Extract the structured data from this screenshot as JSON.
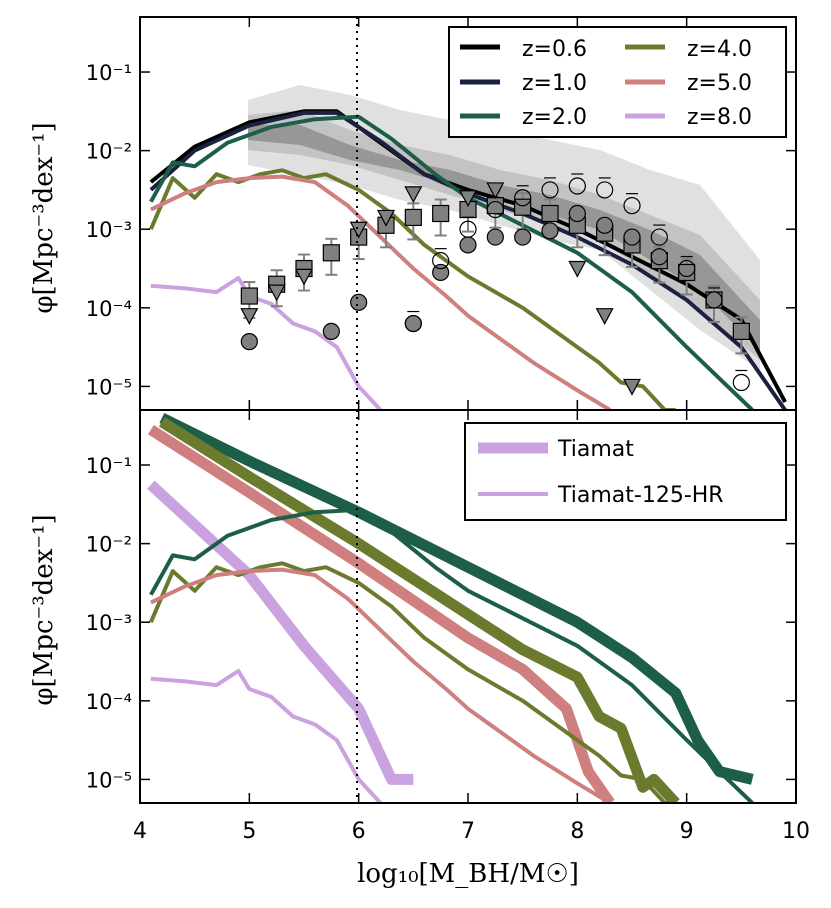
{
  "figure": {
    "top_panel": {
      "ylabel": "φ[Mpc⁻³dex⁻¹]",
      "legend": [
        {
          "label": "z=0.6",
          "color": "#000000"
        },
        {
          "label": "z=1.0",
          "color": "#1b2240"
        },
        {
          "label": "z=2.0",
          "color": "#1d5e48"
        },
        {
          "label": "z=4.0",
          "color": "#6b7b2e"
        },
        {
          "label": "z=5.0",
          "color": "#cf7f7f"
        },
        {
          "label": "z=8.0",
          "color": "#c9a2df"
        }
      ]
    },
    "bottom_panel": {
      "ylabel": "φ[Mpc⁻³dex⁻¹]",
      "legend": [
        {
          "label": "Tiamat",
          "style": "thick"
        },
        {
          "label": "Tiamat-125-HR",
          "style": "thin"
        }
      ]
    },
    "xlabel": "log₁₀[M_BH/M☉]",
    "xticks": [
      "4",
      "5",
      "6",
      "7",
      "8",
      "9",
      "10"
    ],
    "yticks": [
      "10⁻¹",
      "10⁻²",
      "10⁻³",
      "10⁻⁴",
      "10⁻⁵"
    ]
  },
  "chart_data": [
    {
      "type": "line",
      "xlim": [
        4,
        10
      ],
      "ylim_log10": [
        -5.3,
        -0.3
      ],
      "y_scale": "log",
      "reference_line_x": 6,
      "legend_position": "top-right",
      "series": [
        {
          "name": "z=0.6",
          "color": "#000000",
          "x": [
            4.1,
            4.5,
            5.0,
            5.5,
            5.8,
            6.2,
            6.6,
            7.0,
            7.5,
            8.0,
            8.5,
            9.0,
            9.5,
            9.9
          ],
          "log_y": [
            -2.4,
            -1.95,
            -1.64,
            -1.5,
            -1.5,
            -1.9,
            -2.3,
            -2.5,
            -2.7,
            -3.0,
            -3.35,
            -3.7,
            -4.15,
            -5.2
          ]
        },
        {
          "name": "z=1.0",
          "color": "#1b2240",
          "x": [
            4.1,
            4.5,
            5.0,
            5.5,
            5.8,
            6.2,
            6.6,
            7.0,
            7.5,
            8.0,
            8.5,
            9.0,
            9.5,
            9.9
          ],
          "log_y": [
            -2.5,
            -2.0,
            -1.68,
            -1.52,
            -1.52,
            -1.88,
            -2.3,
            -2.55,
            -2.8,
            -3.1,
            -3.45,
            -3.9,
            -4.5,
            -5.3
          ]
        },
        {
          "name": "z=2.0",
          "color": "#1d5e48",
          "x": [
            4.1,
            4.3,
            4.5,
            4.8,
            5.2,
            5.6,
            6.0,
            6.3,
            6.7,
            7.0,
            7.5,
            8.0,
            8.5,
            9.0,
            9.3,
            9.6
          ],
          "log_y": [
            -2.65,
            -2.15,
            -2.2,
            -1.9,
            -1.7,
            -1.6,
            -1.57,
            -1.85,
            -2.3,
            -2.6,
            -2.95,
            -3.3,
            -3.8,
            -4.5,
            -4.9,
            -5.3
          ]
        },
        {
          "name": "z=4.0",
          "color": "#6b7b2e",
          "x": [
            4.1,
            4.3,
            4.5,
            4.7,
            4.9,
            5.1,
            5.3,
            5.5,
            5.7,
            6.0,
            6.3,
            6.6,
            7.0,
            7.5,
            8.0,
            8.2,
            8.4,
            8.6,
            8.8,
            8.9
          ],
          "log_y": [
            -3.0,
            -2.35,
            -2.6,
            -2.3,
            -2.4,
            -2.3,
            -2.25,
            -2.35,
            -2.3,
            -2.5,
            -2.8,
            -3.2,
            -3.6,
            -4.0,
            -4.5,
            -4.7,
            -4.95,
            -5.0,
            -5.3,
            -5.3
          ]
        },
        {
          "name": "z=5.0",
          "color": "#cf7f7f",
          "x": [
            4.1,
            4.4,
            4.7,
            5.0,
            5.3,
            5.6,
            5.9,
            6.2,
            6.5,
            6.8,
            7.0,
            7.3,
            7.6,
            8.0,
            8.3
          ],
          "log_y": [
            -2.75,
            -2.55,
            -2.4,
            -2.35,
            -2.33,
            -2.4,
            -2.7,
            -3.1,
            -3.5,
            -3.85,
            -4.1,
            -4.4,
            -4.7,
            -5.05,
            -5.3
          ]
        },
        {
          "name": "z=8.0",
          "color": "#c9a2df",
          "x": [
            4.1,
            4.4,
            4.7,
            4.9,
            5.0,
            5.2,
            5.4,
            5.6,
            5.8,
            6.0,
            6.2
          ],
          "log_y": [
            -3.72,
            -3.75,
            -3.8,
            -3.62,
            -3.85,
            -3.95,
            -4.2,
            -4.3,
            -4.5,
            -5.0,
            -5.3
          ]
        }
      ],
      "observations": {
        "squares": {
          "x": [
            5.0,
            5.25,
            5.5,
            5.75,
            6.0,
            6.25,
            6.5,
            6.75,
            7.0,
            7.25,
            7.5,
            7.75,
            8.0,
            8.25,
            8.5,
            8.75,
            9.0,
            9.25,
            9.5
          ],
          "log_y": [
            -3.85,
            -3.7,
            -3.5,
            -3.3,
            -3.1,
            -2.95,
            -2.85,
            -2.8,
            -2.75,
            -2.7,
            -2.72,
            -2.8,
            -2.95,
            -3.05,
            -3.2,
            -3.4,
            -3.55,
            -3.9,
            -4.3
          ]
        },
        "filled_circles": {
          "x": [
            5.0,
            5.75,
            6.0,
            6.5,
            6.75,
            7.0,
            7.25,
            7.5,
            7.75,
            8.0,
            8.25,
            8.5,
            8.75
          ],
          "log_y": [
            -4.43,
            -4.3,
            -3.93,
            -4.2,
            -3.55,
            -3.2,
            -3.1,
            -3.1,
            -3.02,
            -2.8,
            -2.95,
            -3.1,
            -3.35
          ]
        },
        "open_circles": {
          "x": [
            6.5,
            6.75,
            7.0,
            7.25,
            7.5,
            7.75,
            8.0,
            8.25,
            8.5,
            8.75,
            9.0,
            9.25,
            9.5
          ],
          "log_y": [
            -4.2,
            -3.4,
            -3.0,
            -2.75,
            -2.6,
            -2.5,
            -2.45,
            -2.5,
            -2.7,
            -3.1,
            -3.5,
            -3.9,
            -4.95
          ]
        },
        "triangles": {
          "x": [
            5.0,
            5.25,
            5.5,
            6.0,
            6.25,
            6.5,
            7.0,
            7.25,
            8.0,
            8.25,
            8.5
          ],
          "log_y": [
            -4.1,
            -3.8,
            -3.6,
            -3.0,
            -2.85,
            -2.55,
            -2.6,
            -2.5,
            -3.5,
            -4.1,
            -5.0
          ]
        }
      }
    },
    {
      "type": "line",
      "xlim": [
        4,
        10
      ],
      "ylim_log10": [
        -5.3,
        -0.3
      ],
      "y_scale": "log",
      "reference_line_x": 6,
      "legend_position": "top-right",
      "series": [
        {
          "name": "Tiamat z=2.0",
          "color": "#1d5e48",
          "style": "thick",
          "x": [
            4.2,
            5.0,
            6.0,
            7.0,
            7.5,
            8.0,
            8.5,
            8.9,
            9.1,
            9.3,
            9.6
          ],
          "log_y": [
            -0.4,
            -0.95,
            -1.6,
            -2.3,
            -2.65,
            -3.0,
            -3.45,
            -3.9,
            -4.5,
            -4.9,
            -5.0
          ]
        },
        {
          "name": "Tiamat z=4.0",
          "color": "#6b7b2e",
          "style": "thick",
          "x": [
            4.2,
            5.0,
            6.0,
            7.0,
            7.5,
            8.0,
            8.2,
            8.4,
            8.6,
            8.7,
            8.9
          ],
          "log_y": [
            -0.45,
            -1.15,
            -2.0,
            -2.9,
            -3.35,
            -3.7,
            -4.2,
            -4.35,
            -5.1,
            -5.0,
            -5.3
          ]
        },
        {
          "name": "Tiamat z=5.0",
          "color": "#cf7f7f",
          "style": "thick",
          "x": [
            4.1,
            5.0,
            6.0,
            7.0,
            7.5,
            7.9,
            8.1,
            8.3
          ],
          "log_y": [
            -0.55,
            -1.35,
            -2.25,
            -3.2,
            -3.6,
            -4.1,
            -4.9,
            -5.3
          ]
        },
        {
          "name": "Tiamat z=8.0",
          "color": "#c9a2df",
          "style": "thick",
          "x": [
            4.1,
            5.0,
            5.5,
            6.0,
            6.3,
            6.5
          ],
          "log_y": [
            -1.25,
            -2.4,
            -3.3,
            -4.1,
            -5.0,
            -5.0
          ]
        },
        {
          "name": "Tiamat-125-HR z=2.0",
          "color": "#1d5e48",
          "style": "thin",
          "x": [
            4.1,
            4.3,
            4.5,
            4.8,
            5.2,
            5.6,
            6.0,
            6.3,
            6.7,
            7.0,
            7.5,
            8.0,
            8.5,
            9.0,
            9.3,
            9.6
          ],
          "log_y": [
            -2.65,
            -2.15,
            -2.2,
            -1.9,
            -1.7,
            -1.6,
            -1.57,
            -1.85,
            -2.3,
            -2.6,
            -2.95,
            -3.3,
            -3.8,
            -4.5,
            -4.9,
            -5.3
          ]
        },
        {
          "name": "Tiamat-125-HR z=4.0",
          "color": "#6b7b2e",
          "style": "thin",
          "x": [
            4.1,
            4.3,
            4.5,
            4.7,
            4.9,
            5.1,
            5.3,
            5.5,
            5.7,
            6.0,
            6.3,
            6.6,
            7.0,
            7.5,
            8.0,
            8.2,
            8.4,
            8.6,
            8.8,
            8.9
          ],
          "log_y": [
            -3.0,
            -2.35,
            -2.6,
            -2.3,
            -2.4,
            -2.3,
            -2.25,
            -2.35,
            -2.3,
            -2.5,
            -2.8,
            -3.2,
            -3.6,
            -4.0,
            -4.5,
            -4.7,
            -4.95,
            -5.0,
            -5.3,
            -5.3
          ]
        },
        {
          "name": "Tiamat-125-HR z=5.0",
          "color": "#cf7f7f",
          "style": "thin",
          "x": [
            4.1,
            4.4,
            4.7,
            5.0,
            5.3,
            5.6,
            5.9,
            6.2,
            6.5,
            6.8,
            7.0,
            7.3,
            7.6,
            8.0,
            8.3
          ],
          "log_y": [
            -2.75,
            -2.55,
            -2.4,
            -2.35,
            -2.33,
            -2.4,
            -2.7,
            -3.1,
            -3.5,
            -3.85,
            -4.1,
            -4.4,
            -4.7,
            -5.05,
            -5.3
          ]
        },
        {
          "name": "Tiamat-125-HR z=8.0",
          "color": "#c9a2df",
          "style": "thin",
          "x": [
            4.1,
            4.4,
            4.7,
            4.9,
            5.0,
            5.2,
            5.4,
            5.6,
            5.8,
            6.0,
            6.2
          ],
          "log_y": [
            -3.72,
            -3.75,
            -3.8,
            -3.62,
            -3.85,
            -3.95,
            -4.2,
            -4.3,
            -4.5,
            -5.0,
            -5.3
          ]
        }
      ]
    }
  ]
}
